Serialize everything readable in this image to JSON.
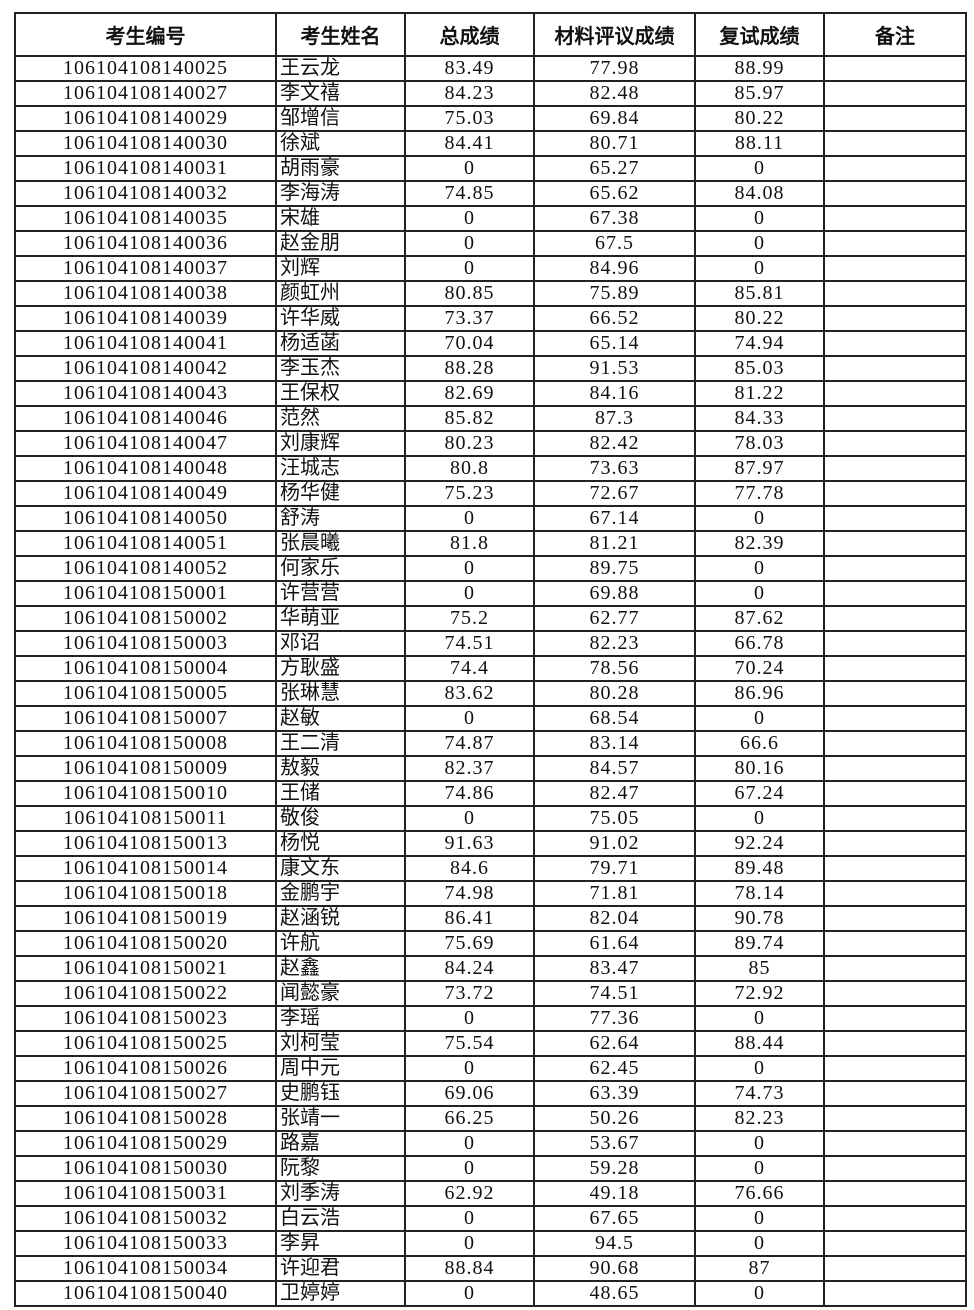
{
  "headers": [
    "考生编号",
    "考生姓名",
    "总成绩",
    "材料评议成绩",
    "复试成绩",
    "备注"
  ],
  "rows": [
    [
      "106104108140025",
      "王云龙",
      "83.49",
      "77.98",
      "88.99",
      ""
    ],
    [
      "106104108140027",
      "李文禧",
      "84.23",
      "82.48",
      "85.97",
      ""
    ],
    [
      "106104108140029",
      "邹增信",
      "75.03",
      "69.84",
      "80.22",
      ""
    ],
    [
      "106104108140030",
      "徐斌",
      "84.41",
      "80.71",
      "88.11",
      ""
    ],
    [
      "106104108140031",
      "胡雨豪",
      "0",
      "65.27",
      "0",
      ""
    ],
    [
      "106104108140032",
      "李海涛",
      "74.85",
      "65.62",
      "84.08",
      ""
    ],
    [
      "106104108140035",
      "宋雄",
      "0",
      "67.38",
      "0",
      ""
    ],
    [
      "106104108140036",
      "赵金朋",
      "0",
      "67.5",
      "0",
      ""
    ],
    [
      "106104108140037",
      "刘辉",
      "0",
      "84.96",
      "0",
      ""
    ],
    [
      "106104108140038",
      "颜虹州",
      "80.85",
      "75.89",
      "85.81",
      ""
    ],
    [
      "106104108140039",
      "许华威",
      "73.37",
      "66.52",
      "80.22",
      ""
    ],
    [
      "106104108140041",
      "杨适菡",
      "70.04",
      "65.14",
      "74.94",
      ""
    ],
    [
      "106104108140042",
      "李玉杰",
      "88.28",
      "91.53",
      "85.03",
      ""
    ],
    [
      "106104108140043",
      "王保权",
      "82.69",
      "84.16",
      "81.22",
      ""
    ],
    [
      "106104108140046",
      "范然",
      "85.82",
      "87.3",
      "84.33",
      ""
    ],
    [
      "106104108140047",
      "刘康辉",
      "80.23",
      "82.42",
      "78.03",
      ""
    ],
    [
      "106104108140048",
      "汪城志",
      "80.8",
      "73.63",
      "87.97",
      ""
    ],
    [
      "106104108140049",
      "杨华健",
      "75.23",
      "72.67",
      "77.78",
      ""
    ],
    [
      "106104108140050",
      "舒涛",
      "0",
      "67.14",
      "0",
      ""
    ],
    [
      "106104108140051",
      "张晨曦",
      "81.8",
      "81.21",
      "82.39",
      ""
    ],
    [
      "106104108140052",
      "何家乐",
      "0",
      "89.75",
      "0",
      ""
    ],
    [
      "106104108150001",
      "许营营",
      "0",
      "69.88",
      "0",
      ""
    ],
    [
      "106104108150002",
      "华萌亚",
      "75.2",
      "62.77",
      "87.62",
      ""
    ],
    [
      "106104108150003",
      "邓诏",
      "74.51",
      "82.23",
      "66.78",
      ""
    ],
    [
      "106104108150004",
      "方耿盛",
      "74.4",
      "78.56",
      "70.24",
      ""
    ],
    [
      "106104108150005",
      "张琳慧",
      "83.62",
      "80.28",
      "86.96",
      ""
    ],
    [
      "106104108150007",
      "赵敏",
      "0",
      "68.54",
      "0",
      ""
    ],
    [
      "106104108150008",
      "王二清",
      "74.87",
      "83.14",
      "66.6",
      ""
    ],
    [
      "106104108150009",
      "敖毅",
      "82.37",
      "84.57",
      "80.16",
      ""
    ],
    [
      "106104108150010",
      "王储",
      "74.86",
      "82.47",
      "67.24",
      ""
    ],
    [
      "106104108150011",
      "敬俊",
      "0",
      "75.05",
      "0",
      ""
    ],
    [
      "106104108150013",
      "杨悦",
      "91.63",
      "91.02",
      "92.24",
      ""
    ],
    [
      "106104108150014",
      "康文东",
      "84.6",
      "79.71",
      "89.48",
      ""
    ],
    [
      "106104108150018",
      "金鹏宇",
      "74.98",
      "71.81",
      "78.14",
      ""
    ],
    [
      "106104108150019",
      "赵涵锐",
      "86.41",
      "82.04",
      "90.78",
      ""
    ],
    [
      "106104108150020",
      "许航",
      "75.69",
      "61.64",
      "89.74",
      ""
    ],
    [
      "106104108150021",
      "赵鑫",
      "84.24",
      "83.47",
      "85",
      ""
    ],
    [
      "106104108150022",
      "闻懿豪",
      "73.72",
      "74.51",
      "72.92",
      ""
    ],
    [
      "106104108150023",
      "李瑶",
      "0",
      "77.36",
      "0",
      ""
    ],
    [
      "106104108150025",
      "刘柯莹",
      "75.54",
      "62.64",
      "88.44",
      ""
    ],
    [
      "106104108150026",
      "周中元",
      "0",
      "62.45",
      "0",
      ""
    ],
    [
      "106104108150027",
      "史鹏钰",
      "69.06",
      "63.39",
      "74.73",
      ""
    ],
    [
      "106104108150028",
      "张靖一",
      "66.25",
      "50.26",
      "82.23",
      ""
    ],
    [
      "106104108150029",
      "路嘉",
      "0",
      "53.67",
      "0",
      ""
    ],
    [
      "106104108150030",
      "阮黎",
      "0",
      "59.28",
      "0",
      ""
    ],
    [
      "106104108150031",
      "刘季涛",
      "62.92",
      "49.18",
      "76.66",
      ""
    ],
    [
      "106104108150032",
      "白云浩",
      "0",
      "67.65",
      "0",
      ""
    ],
    [
      "106104108150033",
      "李昇",
      "0",
      "94.5",
      "0",
      ""
    ],
    [
      "106104108150034",
      "许迎君",
      "88.84",
      "90.68",
      "87",
      ""
    ],
    [
      "106104108150040",
      "卫婷婷",
      "0",
      "48.65",
      "0",
      ""
    ]
  ]
}
